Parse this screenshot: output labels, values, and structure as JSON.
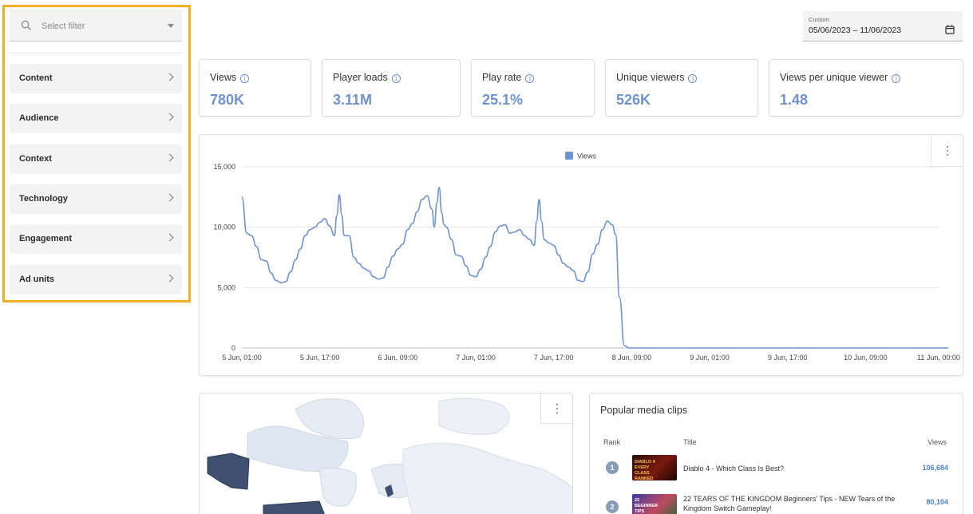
{
  "sidebar": {
    "filter_placeholder": "Select filter",
    "categories": [
      {
        "label": "Content"
      },
      {
        "label": "Audience"
      },
      {
        "label": "Context"
      },
      {
        "label": "Technology"
      },
      {
        "label": "Engagement"
      },
      {
        "label": "Ad units"
      }
    ],
    "highlight_color": "#f3ae25"
  },
  "date_picker": {
    "caption": "Custom",
    "value": "05/06/2023 – 11/06/2023"
  },
  "kpis": [
    {
      "label": "Views",
      "value": "780K"
    },
    {
      "label": "Player loads",
      "value": "3.11M"
    },
    {
      "label": "Play rate",
      "value": "25.1%"
    },
    {
      "label": "Unique viewers",
      "value": "526K"
    },
    {
      "label": "Views per unique viewer",
      "value": "1.48"
    }
  ],
  "accent_color": "#6f93cf",
  "chart_data": {
    "type": "line",
    "legend": [
      "Views"
    ],
    "legend_placement": "top-center",
    "grid": true,
    "ylim": [
      0,
      15000
    ],
    "y_ticks": [
      "15,000",
      "10,000",
      "5,000",
      "0"
    ],
    "x_ticks": [
      "5 Jun, 01:00",
      "5 Jun, 17:00",
      "6 Jun, 09:00",
      "7 Jun, 01:00",
      "7 Jun, 17:00",
      "8 Jun, 09:00",
      "9 Jun, 01:00",
      "9 Jun, 17:00",
      "10 Jun, 09:00",
      "11 Jun, 00:00"
    ],
    "series": [
      {
        "name": "Views",
        "color": "#6f93cf",
        "points": [
          [
            0.0,
            12500
          ],
          [
            1.0,
            9500
          ],
          [
            2.0,
            9300
          ],
          [
            3.0,
            8400
          ],
          [
            4.0,
            7300
          ],
          [
            5.0,
            7200
          ],
          [
            6.0,
            6200
          ],
          [
            7.0,
            5600
          ],
          [
            8.0,
            5400
          ],
          [
            9.0,
            5500
          ],
          [
            10.0,
            6300
          ],
          [
            11.0,
            7300
          ],
          [
            12.0,
            8200
          ],
          [
            13.0,
            9300
          ],
          [
            14.0,
            9800
          ],
          [
            15.0,
            10000
          ],
          [
            16.0,
            10400
          ],
          [
            17.0,
            10700
          ],
          [
            18.0,
            10100
          ],
          [
            19.0,
            9300
          ],
          [
            19.5,
            11000
          ],
          [
            20.0,
            12700
          ],
          [
            20.5,
            11000
          ],
          [
            21.0,
            9300
          ],
          [
            22.0,
            9300
          ],
          [
            23.0,
            7500
          ],
          [
            24.0,
            7000
          ],
          [
            25.0,
            6600
          ],
          [
            26.0,
            6400
          ],
          [
            27.0,
            5900
          ],
          [
            28.0,
            5700
          ],
          [
            29.0,
            5800
          ],
          [
            30.0,
            6700
          ],
          [
            31.0,
            7600
          ],
          [
            32.0,
            8200
          ],
          [
            33.0,
            8600
          ],
          [
            34.0,
            9800
          ],
          [
            35.0,
            10300
          ],
          [
            36.0,
            11300
          ],
          [
            37.0,
            12300
          ],
          [
            38.0,
            12600
          ],
          [
            39.0,
            11500
          ],
          [
            39.5,
            10000
          ],
          [
            40.0,
            12000
          ],
          [
            40.5,
            13300
          ],
          [
            41.0,
            11200
          ],
          [
            41.5,
            10200
          ],
          [
            42.0,
            10000
          ],
          [
            43.0,
            9000
          ],
          [
            44.0,
            7700
          ],
          [
            45.0,
            7600
          ],
          [
            46.0,
            6800
          ],
          [
            47.0,
            6000
          ],
          [
            48.0,
            5900
          ],
          [
            49.0,
            6500
          ],
          [
            50.0,
            7500
          ],
          [
            51.0,
            8400
          ],
          [
            52.0,
            9600
          ],
          [
            53.0,
            10100
          ],
          [
            54.0,
            10200
          ],
          [
            55.0,
            9500
          ],
          [
            56.0,
            9600
          ],
          [
            57.0,
            9800
          ],
          [
            58.0,
            9300
          ],
          [
            59.0,
            9000
          ],
          [
            60.0,
            8500
          ],
          [
            60.5,
            10500
          ],
          [
            61.0,
            12300
          ],
          [
            61.5,
            10500
          ],
          [
            62.0,
            9000
          ],
          [
            63.0,
            8700
          ],
          [
            64.0,
            8500
          ],
          [
            65.0,
            7700
          ],
          [
            66.0,
            7000
          ],
          [
            67.0,
            6700
          ],
          [
            68.0,
            6400
          ],
          [
            69.0,
            5600
          ],
          [
            70.0,
            5500
          ],
          [
            71.0,
            6300
          ],
          [
            72.0,
            7800
          ],
          [
            73.0,
            8600
          ],
          [
            74.0,
            9800
          ],
          [
            75.0,
            10500
          ],
          [
            76.0,
            10200
          ],
          [
            76.7,
            9400
          ],
          [
            77.5,
            4200
          ],
          [
            78.5,
            200
          ],
          [
            79.5,
            0
          ],
          [
            80.0,
            0
          ],
          [
            90.0,
            0
          ],
          [
            100.0,
            0
          ],
          [
            110.0,
            0
          ],
          [
            119.0,
            0
          ],
          [
            128.0,
            0
          ],
          [
            138.0,
            0
          ],
          [
            145.0,
            0
          ]
        ]
      }
    ],
    "x_tick_hours": [
      0,
      16,
      32,
      48,
      64,
      80,
      96,
      112,
      128,
      143
    ]
  },
  "popular_clips": {
    "title": "Popular media clips",
    "columns": {
      "rank": "Rank",
      "title": "Title",
      "views": "Views"
    },
    "rows": [
      {
        "rank": "1",
        "title": "Diablo 4 - Which Class Is Best?",
        "views": "106,684",
        "thumb_text": "DIABLO 4 EVERY CLASS RANKED"
      },
      {
        "rank": "2",
        "title": "22 TEARS OF THE KINGDOM Beginners' Tips - NEW Tears of the Kingdom Switch Gameplay!",
        "views": "80,104",
        "thumb_text": "22 BEGINNER TIPS"
      }
    ]
  }
}
